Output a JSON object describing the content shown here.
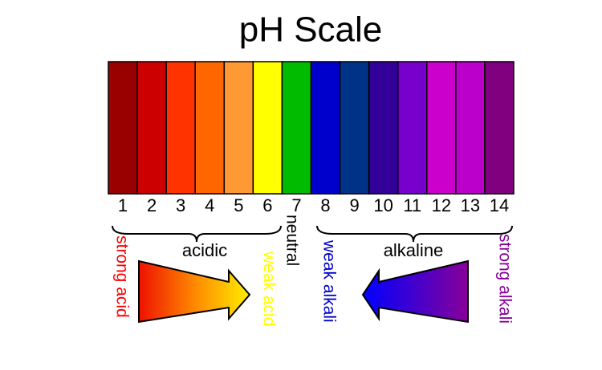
{
  "title": "pH Scale",
  "scale": [
    {
      "label": "1",
      "color": "#990000"
    },
    {
      "label": "2",
      "color": "#cc0000"
    },
    {
      "label": "3",
      "color": "#ff3300"
    },
    {
      "label": "4",
      "color": "#ff6600"
    },
    {
      "label": "5",
      "color": "#ff9933"
    },
    {
      "label": "6",
      "color": "#ffff00"
    },
    {
      "label": "7",
      "color": "#00bb00"
    },
    {
      "label": "8",
      "color": "#0000cc"
    },
    {
      "label": "9",
      "color": "#003388"
    },
    {
      "label": "10",
      "color": "#330099"
    },
    {
      "label": "11",
      "color": "#7700cc"
    },
    {
      "label": "12",
      "color": "#cc00cc"
    },
    {
      "label": "13",
      "color": "#bb00cc"
    },
    {
      "label": "14",
      "color": "#800080"
    }
  ],
  "labels": {
    "acidic": "acidic",
    "neutral": "neutral",
    "alkaline": "alkaline",
    "strong_acid": "strong acid",
    "weak_acid": "weak acid",
    "weak_alkali": "weak alkali",
    "strong_alkali": "strong alkali"
  }
}
